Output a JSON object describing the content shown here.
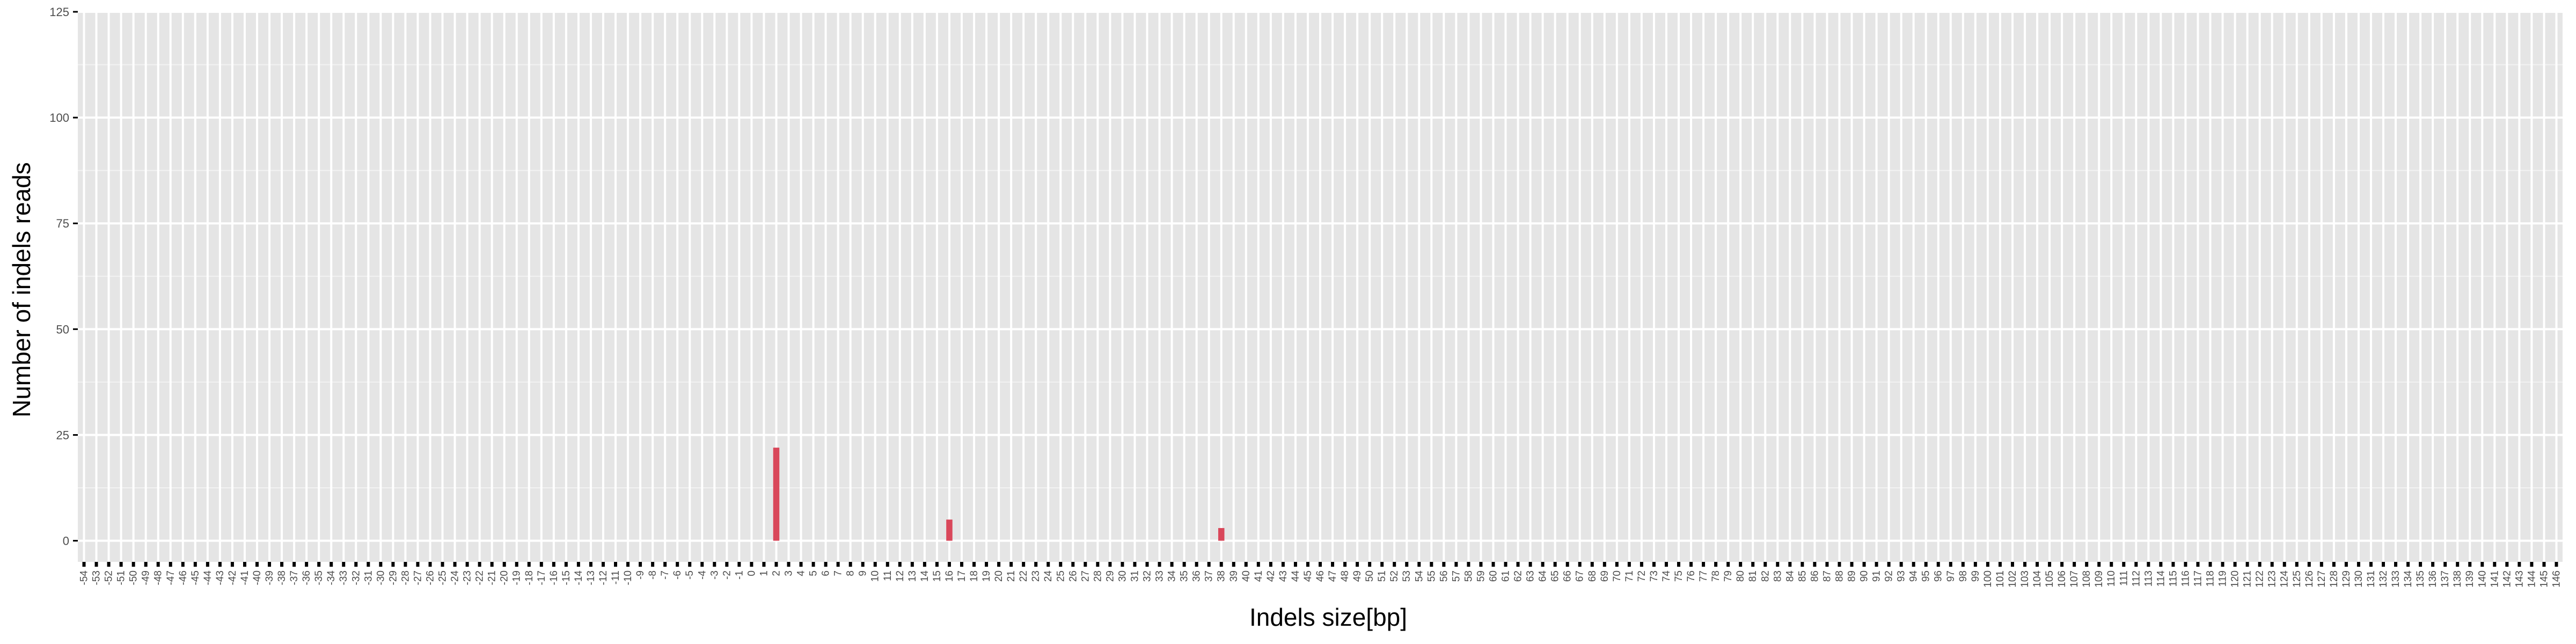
{
  "chart_data": {
    "type": "bar",
    "xlabel": "Indels size[bp]",
    "ylabel": "Number of indels reads",
    "x_range": [
      -54,
      146
    ],
    "categories_excluded": [],
    "ylim": [
      -5,
      125
    ],
    "yticks": [
      0,
      25,
      50,
      75,
      100,
      125
    ],
    "grid": true,
    "legend": "none",
    "values": {
      "2": 22,
      "16": 5,
      "38": 3
    },
    "colors": {
      "panel": "#e5e5e5",
      "grid_major": "#ffffff",
      "grid_minor": "#f2f2f2",
      "bar": "#d9475a",
      "tick": "#000000",
      "tick_text": "#4d4d4d"
    }
  }
}
